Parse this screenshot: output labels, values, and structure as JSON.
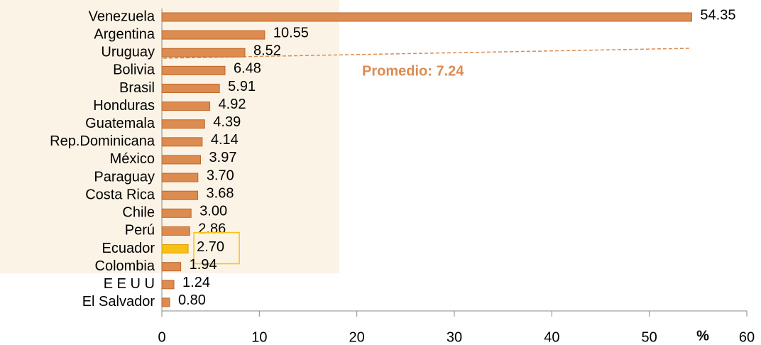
{
  "chart_data": {
    "type": "bar",
    "orientation": "horizontal",
    "categories": [
      "Venezuela",
      "Argentina",
      "Uruguay",
      "Bolivia",
      "Brasil",
      "Honduras",
      "Guatemala",
      "Rep.Dominicana",
      "México",
      "Paraguay",
      "Costa Rica",
      "Chile",
      "Perú",
      "Ecuador",
      "Colombia",
      "E E U U",
      "El Salvador"
    ],
    "values": [
      54.35,
      10.55,
      8.52,
      6.48,
      5.91,
      4.92,
      4.39,
      4.14,
      3.97,
      3.7,
      3.68,
      3.0,
      2.86,
      2.7,
      1.94,
      1.24,
      0.8
    ],
    "value_labels": [
      "54.35",
      "10.55",
      "8.52",
      "6.48",
      "5.91",
      "4.92",
      "4.39",
      "4.14",
      "3.97",
      "3.70",
      "3.68",
      "3.00",
      "2.86",
      "2.70",
      "1.94",
      "1.24",
      "0.80"
    ],
    "color": "#dc8b51",
    "highlight": {
      "index": 13,
      "color": "#f7c117"
    },
    "xlim": [
      0,
      60
    ],
    "xticks": [
      0,
      10,
      20,
      30,
      40,
      50,
      60
    ],
    "xlabel": "%",
    "annotation": "Promedio: 7.24"
  }
}
